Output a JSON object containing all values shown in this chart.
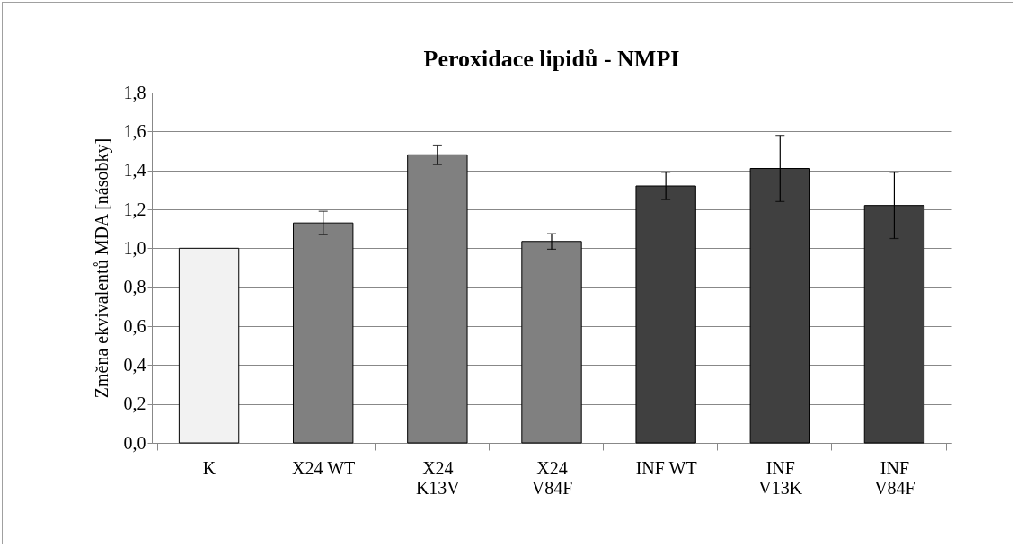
{
  "chart_data": {
    "type": "bar",
    "title": "Peroxidace lipidů - NMPI",
    "ylabel": "Změna ekvivalentů MDA [násobky]",
    "categories": [
      "K",
      "X24 WT",
      "X24\nK13V",
      "X24\nV84F",
      "INF WT",
      "INF\nV13K",
      "INF\nV84F"
    ],
    "values": [
      1.0,
      1.13,
      1.48,
      1.035,
      1.32,
      1.41,
      1.22
    ],
    "errors": [
      null,
      0.06,
      0.05,
      0.04,
      0.07,
      0.17,
      0.17
    ],
    "colors": [
      "#f2f2f2",
      "#808080",
      "#808080",
      "#808080",
      "#404040",
      "#404040",
      "#404040"
    ],
    "ylim": [
      0,
      1.8
    ],
    "yticks": [
      {
        "value": 0,
        "label": "0,0"
      },
      {
        "value": 0.2,
        "label": "0,2"
      },
      {
        "value": 0.4,
        "label": "0,4"
      },
      {
        "value": 0.6,
        "label": "0,6"
      },
      {
        "value": 0.8,
        "label": "0,8"
      },
      {
        "value": 1.0,
        "label": "1,0"
      },
      {
        "value": 1.2,
        "label": "1,2"
      },
      {
        "value": 1.4,
        "label": "1,4"
      },
      {
        "value": 1.6,
        "label": "1,6"
      },
      {
        "value": 1.8,
        "label": "1,8"
      }
    ],
    "grid": "y",
    "legend": false
  }
}
